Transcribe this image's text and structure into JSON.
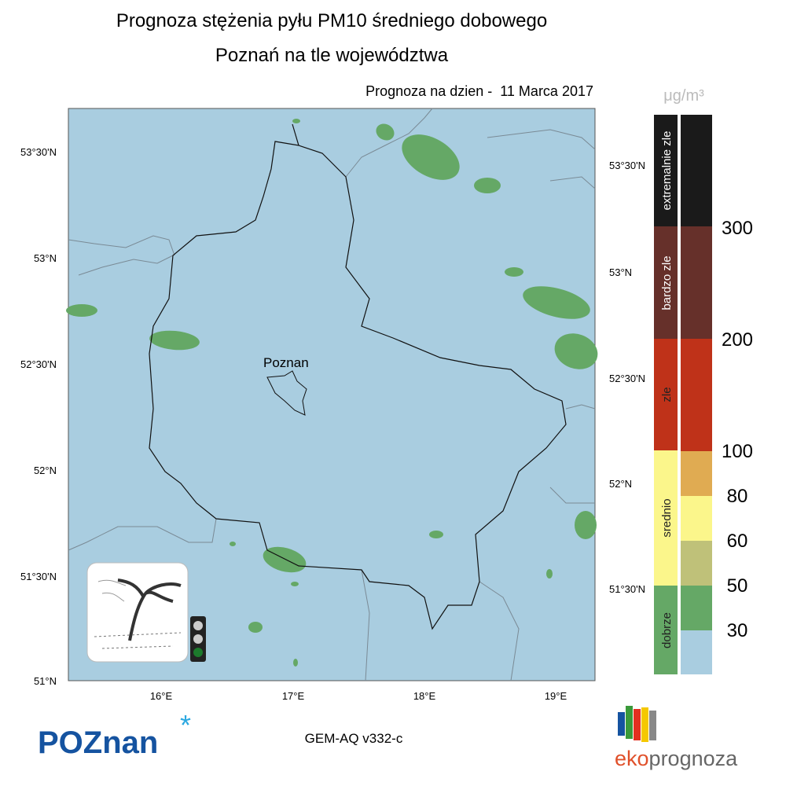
{
  "header": {
    "title": "Prognoza stężenia pyłu PM10 średniego dobowego",
    "subtitle": "Poznań na tle województwa",
    "forecast_date": "Prognoza na dzien -  11 Marca 2017"
  },
  "map": {
    "left_lat_labels": [
      "53°30'N",
      "53°N",
      "52°30'N",
      "52°N",
      "51°30'N",
      "51°N"
    ],
    "right_lat_labels": [
      "53°30'N",
      "53°N",
      "52°30'N",
      "52°N",
      "51°30'N"
    ],
    "lon_labels": [
      "16°E",
      "17°E",
      "18°E",
      "19°E"
    ],
    "city_label": "Poznan",
    "model": "GEM-AQ v332-c"
  },
  "legend": {
    "unit": "μg/m³",
    "categories": [
      "extremalnie zle",
      "bardzo zle",
      "zle",
      "srednio",
      "dobrze"
    ],
    "thresholds": [
      300,
      200,
      100,
      80,
      60,
      50,
      30
    ]
  },
  "logos": {
    "left": "POZnan",
    "right_prefix": "eko",
    "right_suffix": "prognoza"
  }
}
